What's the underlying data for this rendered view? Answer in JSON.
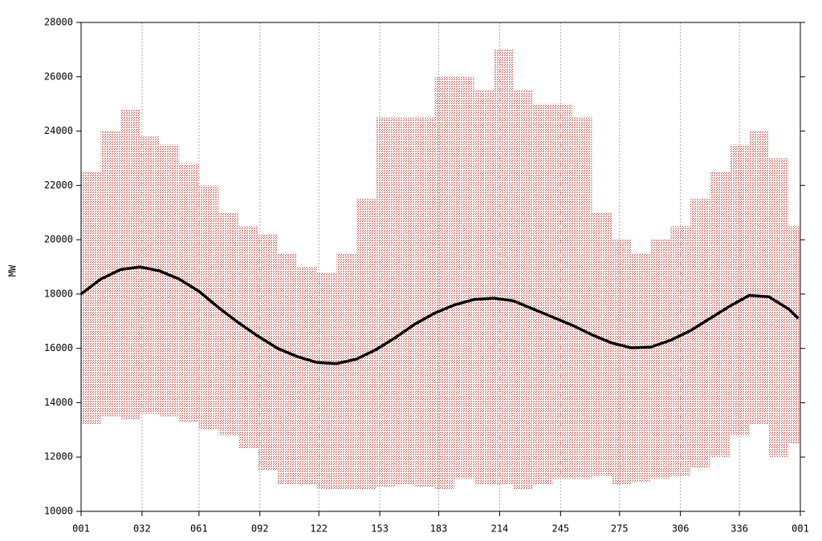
{
  "chart_data": {
    "type": "range-line",
    "ylabel": "MW",
    "xlim": [
      1,
      367
    ],
    "ylim": [
      10000,
      28000
    ],
    "xticks": [
      {
        "value": 1,
        "label": "001"
      },
      {
        "value": 32,
        "label": "032"
      },
      {
        "value": 61,
        "label": "061"
      },
      {
        "value": 92,
        "label": "092"
      },
      122,
      153,
      183,
      214,
      245,
      275,
      306,
      336,
      {
        "value": 367,
        "label": "001"
      }
    ],
    "yticks": [
      10000,
      12000,
      14000,
      16000,
      18000,
      20000,
      22000,
      24000,
      26000,
      28000
    ],
    "grid": true,
    "range": {
      "color": "#c83c32",
      "bins": [
        1,
        11,
        21,
        31,
        41,
        51,
        61,
        71,
        81,
        91,
        101,
        111,
        121,
        131,
        141,
        151,
        161,
        171,
        181,
        191,
        201,
        211,
        221,
        231,
        241,
        251,
        261,
        271,
        281,
        291,
        301,
        311,
        321,
        331,
        341,
        351,
        361,
        367
      ],
      "low": [
        13200,
        13500,
        13400,
        13600,
        13500,
        13300,
        13000,
        12800,
        12300,
        11500,
        11000,
        11000,
        10800,
        10800,
        10800,
        10900,
        11000,
        10900,
        10800,
        11200,
        11000,
        11000,
        10800,
        11000,
        11200,
        11200,
        11300,
        11000,
        11100,
        11200,
        11300,
        11600,
        12000,
        12800,
        13200,
        12000,
        12500
      ],
      "high": [
        22500,
        24000,
        24800,
        23800,
        23500,
        22800,
        22000,
        21000,
        20500,
        20200,
        19500,
        19000,
        18800,
        19500,
        21500,
        24500,
        24500,
        24500,
        26000,
        26000,
        25500,
        27000,
        25500,
        25000,
        25000,
        24500,
        21000,
        20000,
        19500,
        20000,
        20500,
        21500,
        22500,
        23500,
        24000,
        23000,
        20500
      ]
    },
    "line": {
      "color": "#000000",
      "x": [
        1,
        11,
        21,
        31,
        41,
        51,
        61,
        71,
        81,
        91,
        101,
        111,
        121,
        131,
        141,
        151,
        161,
        171,
        181,
        191,
        201,
        211,
        221,
        231,
        241,
        251,
        261,
        271,
        281,
        291,
        301,
        311,
        321,
        331,
        341,
        351,
        361,
        366
      ],
      "values": [
        18000,
        18550,
        18900,
        19000,
        18850,
        18550,
        18100,
        17500,
        16950,
        16450,
        16000,
        15700,
        15480,
        15440,
        15600,
        15950,
        16400,
        16900,
        17300,
        17600,
        17800,
        17850,
        17750,
        17450,
        17150,
        16850,
        16500,
        16200,
        16020,
        16050,
        16300,
        16650,
        17100,
        17550,
        17950,
        17900,
        17450,
        17100
      ]
    }
  }
}
